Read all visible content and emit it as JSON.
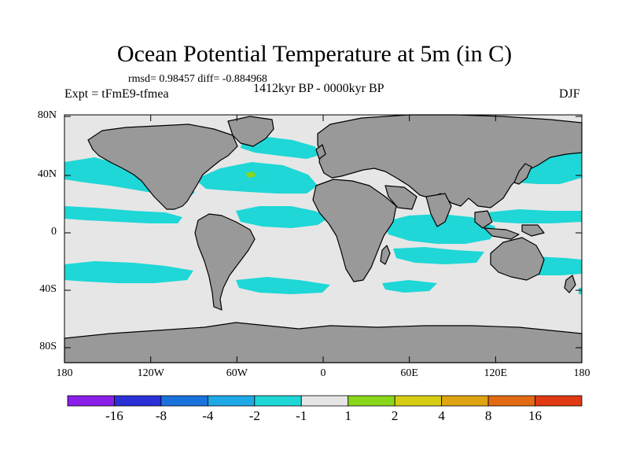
{
  "title": "Ocean Potential Temperature at 5m (in C)",
  "stats": "rmsd= 0.98457 diff= -0.884968",
  "experiment": "Expt = tFmE9-tfmea",
  "period": "1412kyr BP - 0000kyr BP",
  "season": "DJF",
  "axes": {
    "x_ticks": [
      "180",
      "120W",
      "60W",
      "0",
      "60E",
      "120E",
      "180"
    ],
    "y_ticks": [
      "80N",
      "40N",
      "0",
      "40S",
      "80S"
    ]
  },
  "colorbar": {
    "labels": [
      "-16",
      "-8",
      "-4",
      "-2",
      "-1",
      "1",
      "2",
      "4",
      "8",
      "16"
    ],
    "colors": [
      "#8b1ee8",
      "#2a2fd6",
      "#1a72dc",
      "#1fa8e6",
      "#1ed7d6",
      "#e6e6e6",
      "#8ad61a",
      "#d6cc14",
      "#e0a412",
      "#e26a12",
      "#e03a12"
    ]
  },
  "colors": {
    "land": "#999999",
    "no_change": "#e6e6e6",
    "cooling_1_2": "#1ed7d6",
    "cooling_2_4": "#1fa8e6",
    "warming_1_2": "#8ad61a",
    "coastline": "#000000"
  }
}
